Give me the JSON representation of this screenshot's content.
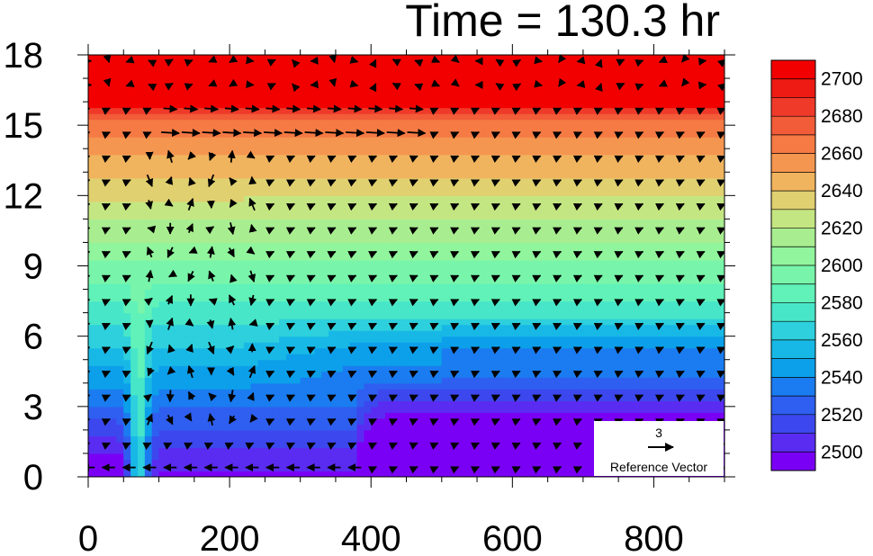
{
  "chart_data": {
    "type": "heatmap",
    "title": "Time = 130.3 hr",
    "xlabel": "",
    "ylabel": "",
    "xlim": [
      0,
      900
    ],
    "ylim": [
      0,
      18
    ],
    "x_ticks": [
      "0",
      "200",
      "400",
      "600",
      "800"
    ],
    "x_tick_values": [
      0,
      200,
      400,
      600,
      800
    ],
    "y_ticks": [
      "0",
      "3",
      "6",
      "9",
      "12",
      "15",
      "18"
    ],
    "y_tick_values": [
      0,
      3,
      6,
      9,
      12,
      15,
      18
    ],
    "colorbar": {
      "labels": [
        "2500",
        "2520",
        "2540",
        "2560",
        "2580",
        "2600",
        "2620",
        "2640",
        "2660",
        "2680",
        "2700"
      ],
      "levels": [
        2500,
        2510,
        2520,
        2530,
        2540,
        2550,
        2560,
        2570,
        2580,
        2590,
        2600,
        2610,
        2620,
        2630,
        2640,
        2650,
        2660,
        2670,
        2680,
        2690,
        2700
      ],
      "colors": [
        "#7a00f5",
        "#5a2cf2",
        "#3c48ee",
        "#2e5ff0",
        "#1a7cf0",
        "#0c9fea",
        "#18b8e6",
        "#2dd0dc",
        "#48e6c8",
        "#60f2b8",
        "#78f5aa",
        "#90f59c",
        "#a8ee90",
        "#c4e682",
        "#e0d070",
        "#f0b45e",
        "#f59650",
        "#f57a44",
        "#f25c38",
        "#ef3a2a",
        "#ee1a14",
        "#f20000"
      ]
    },
    "reference_vector": {
      "magnitude": "3",
      "label": "Reference Vector"
    },
    "field_description": "Level 2495 (violet) up to 2705 (red); values increase with height, low-level violet pool from x~380 to 800 below ~4",
    "vector_field_note": "wind vectors drawn on a grid x=0..900 step ~29, y=0..18 step ~1"
  }
}
